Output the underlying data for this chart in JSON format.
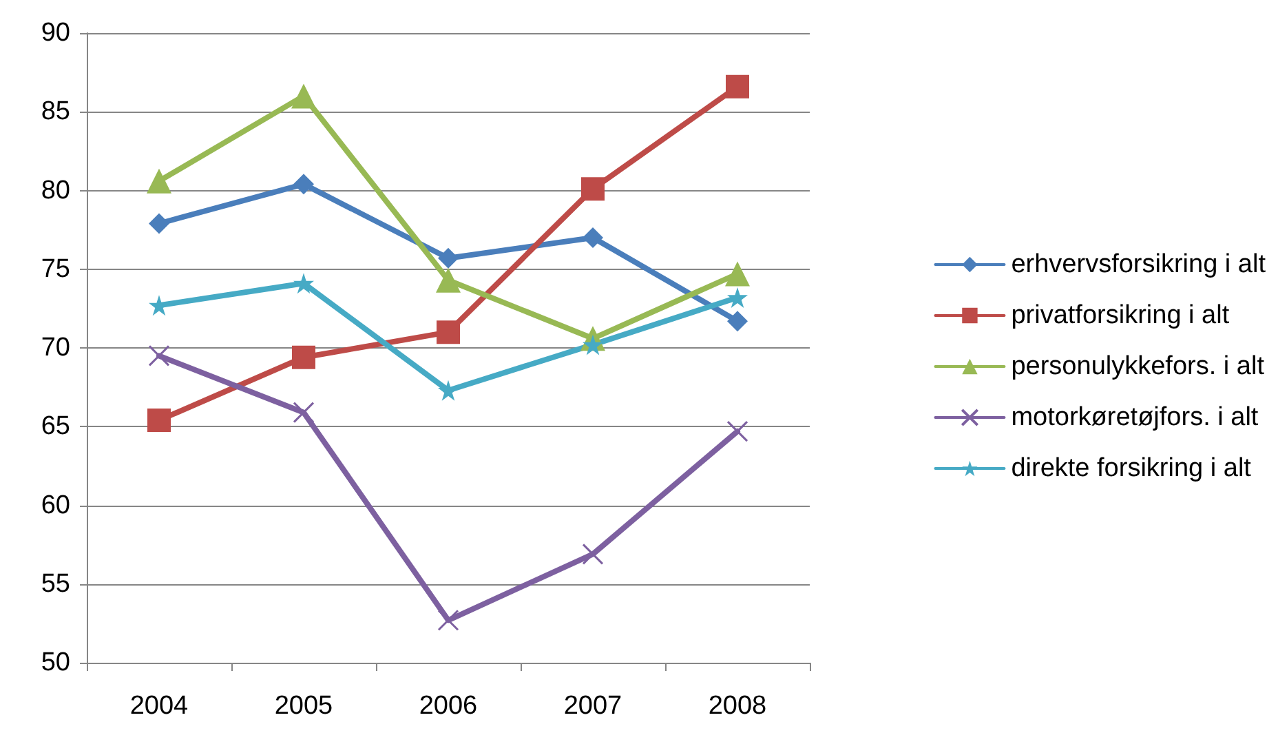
{
  "chart_data": {
    "type": "line",
    "categories": [
      "2004",
      "2005",
      "2006",
      "2007",
      "2008"
    ],
    "ylim": [
      50,
      90
    ],
    "yticks": [
      50,
      55,
      60,
      65,
      70,
      75,
      80,
      85,
      90
    ],
    "grid": "y",
    "legend": "right",
    "series": [
      {
        "name": "erhvervsforsikring i alt",
        "color": "#4a7ebb",
        "marker": "diamond",
        "values": [
          77.9,
          80.4,
          75.7,
          77.0,
          71.7
        ]
      },
      {
        "name": "privatforsikring i alt",
        "color": "#be4b48",
        "marker": "square",
        "values": [
          65.4,
          69.4,
          71.0,
          80.1,
          86.6
        ]
      },
      {
        "name": "personulykkefors. i alt",
        "color": "#98b954",
        "marker": "triangle",
        "values": [
          80.6,
          86.0,
          74.3,
          70.6,
          74.7
        ]
      },
      {
        "name": "motorkøretøjfors. i alt",
        "color": "#7d60a0",
        "marker": "cross",
        "values": [
          69.5,
          65.9,
          52.7,
          56.9,
          64.7
        ]
      },
      {
        "name": "direkte forsikring i alt",
        "color": "#46aac5",
        "marker": "star",
        "values": [
          72.7,
          74.1,
          67.3,
          70.2,
          73.2
        ]
      }
    ]
  }
}
